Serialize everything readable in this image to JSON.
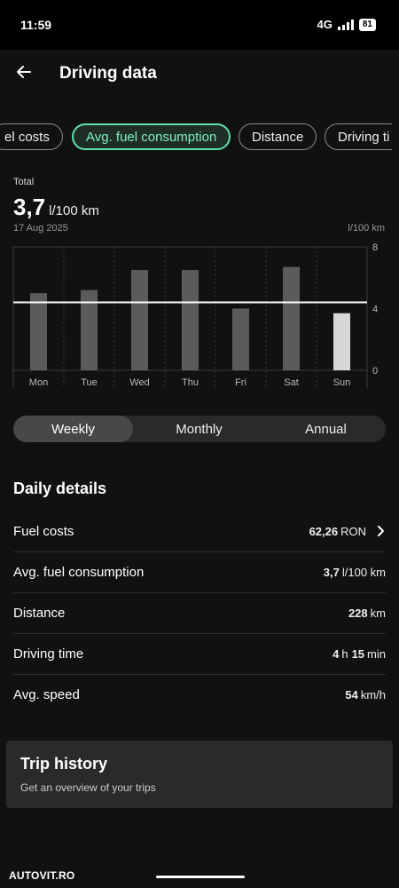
{
  "status": {
    "time": "11:59",
    "network": "4G",
    "battery": "81"
  },
  "header": {
    "title": "Driving data"
  },
  "chips": [
    {
      "label": "el costs",
      "active": false
    },
    {
      "label": "Avg. fuel consumption",
      "active": true
    },
    {
      "label": "Distance",
      "active": false
    },
    {
      "label": "Driving ti",
      "active": false
    }
  ],
  "summary": {
    "label": "Total",
    "value": "3,7",
    "unit": "l/100 km",
    "date": "17 Aug 2025",
    "chart_unit": "l/100 km"
  },
  "chart_data": {
    "type": "bar",
    "categories": [
      "Mon",
      "Tue",
      "Wed",
      "Thu",
      "Fri",
      "Sat",
      "Sun"
    ],
    "values": [
      5.0,
      5.2,
      6.5,
      6.5,
      4.0,
      6.7,
      3.7
    ],
    "average": 4.4,
    "ylim": [
      0,
      8
    ],
    "yticks": [
      "8",
      "4",
      "0"
    ],
    "highlighted_category": "Sun",
    "colors": {
      "bar": "#5b5b5e",
      "bar_highlight": "#d6d6d6",
      "average_line": "#ffffff",
      "grid": "#3a3a3c"
    }
  },
  "period_tabs": [
    {
      "label": "Weekly",
      "active": true
    },
    {
      "label": "Monthly",
      "active": false
    },
    {
      "label": "Annual",
      "active": false
    }
  ],
  "details": {
    "title": "Daily details",
    "rows": [
      {
        "label": "Fuel costs",
        "value": "62,26",
        "unit": "RON",
        "chevron": true
      },
      {
        "label": "Avg. fuel consumption",
        "value": "3,7",
        "unit": "l/100 km"
      },
      {
        "label": "Distance",
        "value": "228",
        "unit": "km"
      },
      {
        "label": "Driving time",
        "value": "4",
        "unit": "h",
        "value2": "15",
        "unit2": "min"
      },
      {
        "label": "Avg. speed",
        "value": "54",
        "unit": "km/h"
      }
    ]
  },
  "trip_history": {
    "title": "Trip history",
    "subtitle": "Get an overview of your trips"
  },
  "watermark": "AUTOVIT.RO"
}
